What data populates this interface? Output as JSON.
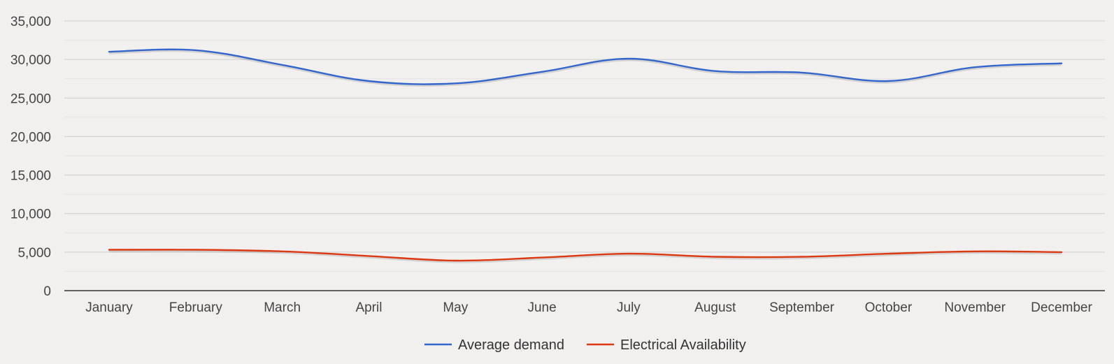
{
  "chart_data": {
    "type": "line",
    "title": "",
    "xlabel": "",
    "ylabel": "",
    "categories": [
      "January",
      "February",
      "March",
      "April",
      "May",
      "June",
      "July",
      "August",
      "September",
      "October",
      "November",
      "December"
    ],
    "series": [
      {
        "name": "Average demand",
        "color": "#3366cc",
        "values": [
          31000,
          31200,
          29300,
          27200,
          26900,
          28400,
          30100,
          28500,
          28300,
          27200,
          29000,
          29500
        ]
      },
      {
        "name": "Electrical Availability",
        "color": "#dc3912",
        "values": [
          5300,
          5300,
          5100,
          4500,
          3900,
          4300,
          4800,
          4400,
          4400,
          4800,
          5100,
          5000
        ]
      }
    ],
    "ylim": [
      0,
      35000
    ],
    "yticks": [
      "0",
      "5,000",
      "10,000",
      "15,000",
      "20,000",
      "25,000",
      "30,000",
      "35,000"
    ],
    "ytick_values": [
      0,
      5000,
      10000,
      15000,
      20000,
      25000,
      30000,
      35000
    ],
    "grid": true,
    "minor_grid": true,
    "legend_position": "bottom",
    "curve": "smooth"
  }
}
